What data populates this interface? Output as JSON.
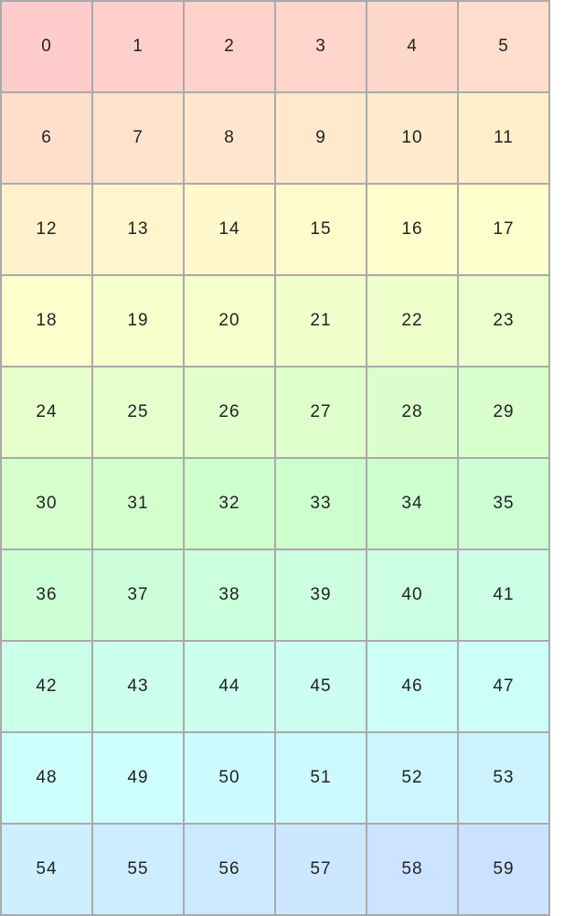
{
  "grid": {
    "columns": 6,
    "cells": [
      "0",
      "1",
      "2",
      "3",
      "4",
      "5",
      "6",
      "7",
      "8",
      "9",
      "10",
      "11",
      "12",
      "13",
      "14",
      "15",
      "16",
      "17",
      "18",
      "19",
      "20",
      "21",
      "22",
      "23",
      "24",
      "25",
      "26",
      "27",
      "28",
      "29",
      "30",
      "31",
      "32",
      "33",
      "34",
      "35",
      "36",
      "37",
      "38",
      "39",
      "40",
      "41",
      "42",
      "43",
      "44",
      "45",
      "46",
      "47",
      "48",
      "49",
      "50",
      "51",
      "52",
      "53",
      "54",
      "55",
      "56",
      "57",
      "58",
      "59"
    ],
    "color_start": "#ffcccc",
    "color_end": "#cce0ff",
    "border_color": "#aaaaaa"
  }
}
